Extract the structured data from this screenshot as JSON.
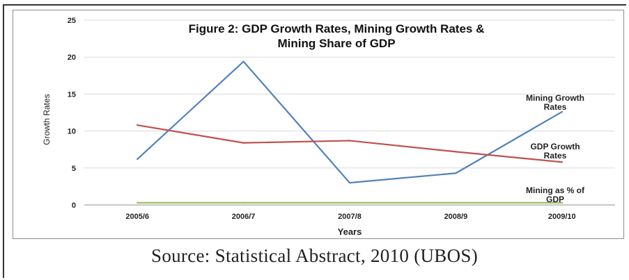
{
  "chart_data": {
    "type": "line",
    "title_lines": [
      "Figure 2: GDP Growth Rates, Mining Growth Rates &",
      "Mining Share of GDP"
    ],
    "xlabel": "Years",
    "ylabel": "Growth Rates",
    "categories": [
      "2005/6",
      "2006/7",
      "2007/8",
      "2008/9",
      "2009/10"
    ],
    "ylim": [
      0,
      25
    ],
    "yticks": [
      "0",
      "5",
      "10",
      "15",
      "20",
      "25"
    ],
    "grid": true,
    "legend": "none",
    "series": [
      {
        "name": "Mining Growth Rates",
        "label_lines": [
          "Mining Growth",
          "Rates"
        ],
        "color": "#4f81bd",
        "values": [
          6.2,
          19.4,
          3.0,
          4.3,
          12.6
        ]
      },
      {
        "name": "GDP Growth Rates",
        "label_lines": [
          "GDP Growth",
          "Rates"
        ],
        "color": "#c0504d",
        "values": [
          10.8,
          8.4,
          8.7,
          7.2,
          5.8
        ]
      },
      {
        "name": "Mining as % of GDP",
        "label_lines": [
          "Mining as % of",
          "GDP"
        ],
        "color": "#9bbb59",
        "values": [
          0.3,
          0.3,
          0.3,
          0.3,
          0.3
        ]
      }
    ]
  },
  "source": "Source: Statistical Abstract, 2010 (UBOS)"
}
